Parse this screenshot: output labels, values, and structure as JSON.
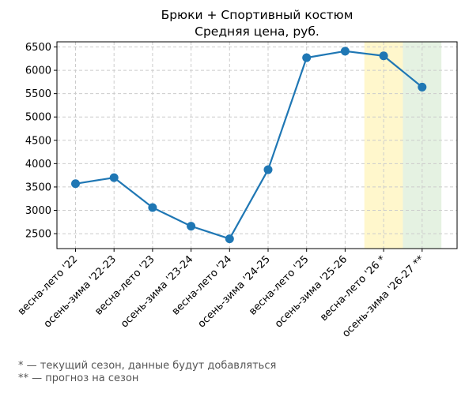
{
  "chart_data": {
    "type": "line",
    "title": "Брюки + Спортивный костюм",
    "subtitle": "Средняя цена, руб.",
    "xlabel": "",
    "ylabel": "",
    "categories": [
      "весна-лето '22",
      "осень-зима '22-23",
      "весна-лето '23",
      "осень-зима '23-24",
      "весна-лето '24",
      "осень-зима '24-25",
      "весна-лето '25",
      "осень-зима '25-26",
      "весна-лето '26 *",
      "осень-зима '26-27 **"
    ],
    "series": [
      {
        "values": [
          3570,
          3700,
          3060,
          2660,
          2390,
          3870,
          6270,
          6410,
          6310,
          5640
        ],
        "color": "#1f77b4"
      }
    ],
    "ylim": [
      2180,
      6610
    ],
    "yticks": [
      2500,
      3000,
      3500,
      4000,
      4500,
      5000,
      5500,
      6000,
      6500
    ],
    "grid": true,
    "highlights": [
      {
        "category_index": 8,
        "color": "#fff7cc"
      },
      {
        "category_index": 9,
        "color": "#e5f2e2"
      }
    ]
  },
  "notes": [
    "* — текущий сезон, данные будут добавляться",
    "** — прогноз на сезон"
  ]
}
